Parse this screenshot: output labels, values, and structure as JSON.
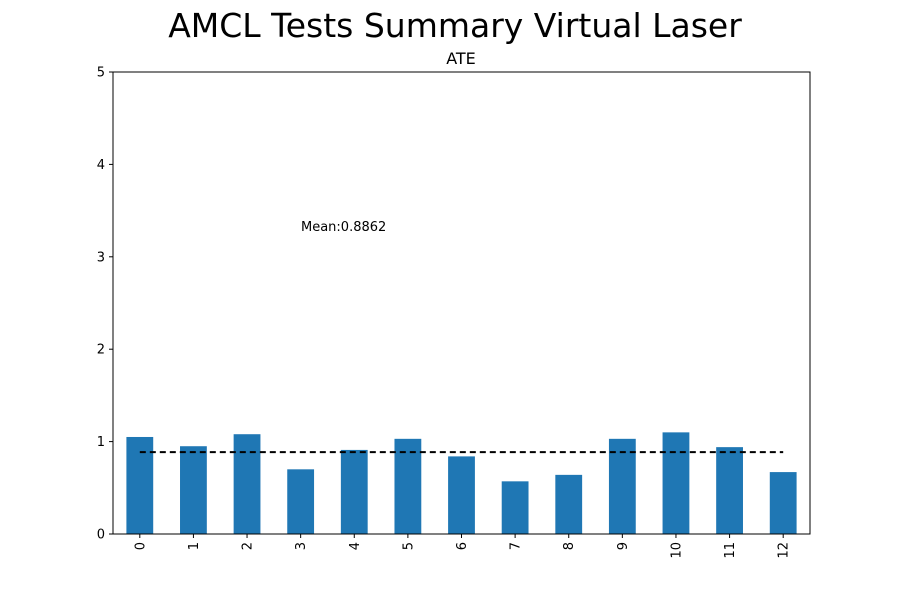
{
  "figure": {
    "title": "AMCL Tests Summary Virtual Laser"
  },
  "chart_data": {
    "type": "bar",
    "title": "ATE",
    "xlabel": "",
    "ylabel": "",
    "categories": [
      "0",
      "1",
      "2",
      "3",
      "4",
      "5",
      "6",
      "7",
      "8",
      "9",
      "10",
      "11",
      "12"
    ],
    "values": [
      1.05,
      0.95,
      1.08,
      0.7,
      0.91,
      1.03,
      0.84,
      0.57,
      0.64,
      1.03,
      1.1,
      0.94,
      0.67
    ],
    "ylim": [
      0,
      5
    ],
    "yticks": [
      "0",
      "1",
      "2",
      "3",
      "4",
      "5"
    ],
    "mean": 0.8862,
    "mean_label": "Mean:0.8862",
    "bar_color": "#1f77b4",
    "mean_line_color": "#000000",
    "mean_line_style": "dashed",
    "grid": false,
    "legend": "none"
  }
}
